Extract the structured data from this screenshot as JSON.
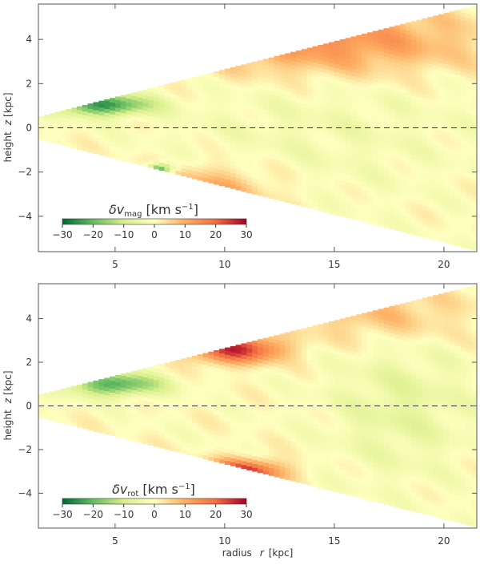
{
  "chart_data": [
    {
      "type": "heatmap",
      "panel": "top",
      "quantity": "δv_mag",
      "colorbar_label": "δv_mag [km s^-1]",
      "colorbar_label_parts": {
        "symbol": "δv",
        "subscript": "mag",
        "unit_open": "[km s",
        "unit_exp": "−1",
        "unit_close": "]"
      },
      "colorbar_ticks": [
        -30,
        -20,
        -10,
        0,
        10,
        20,
        30
      ],
      "colorbar_tick_labels": [
        "−30",
        "−20",
        "−10",
        "0",
        "10",
        "20",
        "30"
      ],
      "colorbar_range": [
        -30,
        30
      ],
      "colormap": [
        "#006837",
        "#66bd63",
        "#d9ef8b",
        "#ffffbf",
        "#fdae61",
        "#f46d43",
        "#a50026"
      ],
      "xlabel": "",
      "ylabel": "height z [kpc]",
      "ylabel_parts": {
        "word": "height",
        "var": "z",
        "unit": "[kpc]"
      },
      "xlim": [
        1.5,
        21.5
      ],
      "ylim": [
        -5.6,
        5.6
      ],
      "xticks": [
        5,
        10,
        15,
        20
      ],
      "xtick_labels": [
        "5",
        "10",
        "15",
        "20"
      ],
      "yticks": [
        -4,
        -2,
        0,
        2,
        4
      ],
      "ytick_labels": [
        "−4",
        "−2",
        "0",
        "2",
        "4"
      ],
      "midplane_line_z": 0,
      "wedge": {
        "r_min": 1.5,
        "r_max": 21.3,
        "z_half_at_rmin": 0.5,
        "z_half_at_rmax": 5.5
      },
      "features": [
        {
          "region": "upper inner edge",
          "r": [
            2.5,
            6.5
          ],
          "z": [
            0.6,
            1.5
          ],
          "value": -25
        },
        {
          "region": "lower inner knot",
          "r": [
            6.5,
            7.6
          ],
          "z": [
            -2.1,
            -1.6
          ],
          "value": -25
        },
        {
          "region": "upper outer edge",
          "r": [
            8,
            21
          ],
          "z": [
            2.5,
            5.4
          ],
          "value": 15
        },
        {
          "region": "lower edge",
          "r": [
            6,
            12
          ],
          "z": [
            -4,
            -1.8
          ],
          "value": 12
        },
        {
          "region": "interior",
          "r": [
            8,
            21
          ],
          "z": [
            -3,
            3
          ],
          "value": -3
        }
      ]
    },
    {
      "type": "heatmap",
      "panel": "bottom",
      "quantity": "δv_rot",
      "colorbar_label": "δv_rot [km s^-1]",
      "colorbar_label_parts": {
        "symbol": "δv",
        "subscript": "rot",
        "unit_open": "[km s",
        "unit_exp": "−1",
        "unit_close": "]"
      },
      "colorbar_ticks": [
        -30,
        -20,
        -10,
        0,
        10,
        20,
        30
      ],
      "colorbar_tick_labels": [
        "−30",
        "−20",
        "−10",
        "0",
        "10",
        "20",
        "30"
      ],
      "colorbar_range": [
        -30,
        30
      ],
      "colormap": [
        "#006837",
        "#66bd63",
        "#d9ef8b",
        "#ffffbf",
        "#fdae61",
        "#f46d43",
        "#a50026"
      ],
      "xlabel": "radius r [kpc]",
      "xlabel_parts": {
        "word": "radius",
        "var": "r",
        "unit": "[kpc]"
      },
      "ylabel": "height z [kpc]",
      "ylabel_parts": {
        "word": "height",
        "var": "z",
        "unit": "[kpc]"
      },
      "xlim": [
        1.5,
        21.5
      ],
      "ylim": [
        -5.6,
        5.6
      ],
      "xticks": [
        5,
        10,
        15,
        20
      ],
      "xtick_labels": [
        "5",
        "10",
        "15",
        "20"
      ],
      "yticks": [
        -4,
        -2,
        0,
        2,
        4
      ],
      "ytick_labels": [
        "−4",
        "−2",
        "0",
        "2",
        "4"
      ],
      "midplane_line_z": 0,
      "wedge": {
        "r_min": 1.5,
        "r_max": 21.3,
        "z_half_at_rmin": 0.5,
        "z_half_at_rmax": 5.5
      },
      "features": [
        {
          "region": "upper inner edge",
          "r": [
            3,
            7
          ],
          "z": [
            0.5,
            1.5
          ],
          "value": -22
        },
        {
          "region": "upper edge 9-12",
          "r": [
            8.5,
            12.5
          ],
          "z": [
            2.0,
            3.2
          ],
          "value": 25
        },
        {
          "region": "lower edge 9-12",
          "r": [
            9,
            12.5
          ],
          "z": [
            -3.6,
            -2.5
          ],
          "value": 28
        },
        {
          "region": "interior 15-21",
          "r": [
            15,
            21
          ],
          "z": [
            -3,
            3
          ],
          "value": -6
        },
        {
          "region": "outer flanks",
          "r": [
            13,
            21
          ],
          "z": [
            3,
            5.5
          ],
          "value": 8
        }
      ]
    }
  ]
}
